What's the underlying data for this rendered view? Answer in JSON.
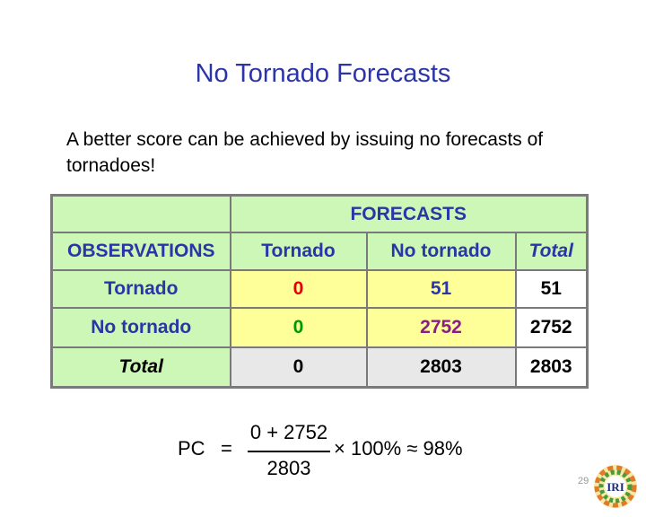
{
  "slide": {
    "title": "No Tornado Forecasts",
    "intro": "A better score can be achieved by issuing no forecasts of tornadoes!",
    "page_number": "29",
    "logo_text": "IRI"
  },
  "table": {
    "forecasts_header": "FORECASTS",
    "observations_header": "OBSERVATIONS",
    "col_headers": [
      "Tornado",
      "No tornado",
      "Total"
    ],
    "rows": [
      {
        "label": "Tornado",
        "values": [
          "0",
          "51",
          "51"
        ]
      },
      {
        "label": "No tornado",
        "values": [
          "0",
          "2752",
          "2752"
        ]
      },
      {
        "label": "Total",
        "values": [
          "0",
          "2803",
          "2803"
        ]
      }
    ]
  },
  "formula": {
    "lhs": "PC",
    "equals": "=",
    "numerator": "0 + 2752",
    "denominator": "2803",
    "rest": "× 100% ≈ 98%"
  },
  "colors": {
    "title": "#2b35a8",
    "header_green": "#ccf7b6",
    "cell_yellow": "#ffff99",
    "cell_gray": "#e8e8e8",
    "red": "#e00000",
    "blue": "#2b35a8",
    "green": "#009800",
    "purple": "#8a1d8a"
  }
}
